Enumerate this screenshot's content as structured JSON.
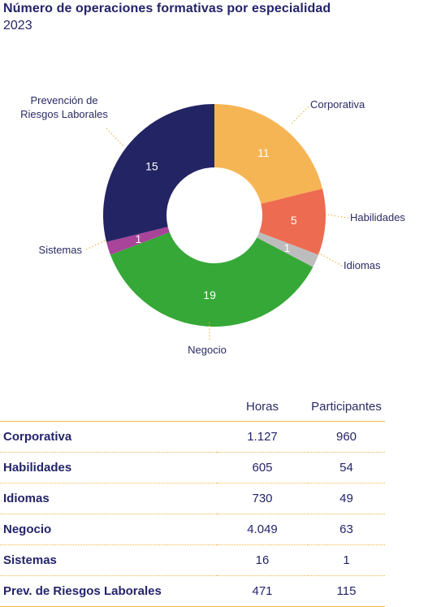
{
  "header": {
    "title": "Número de operaciones formativas por especialidad",
    "subtitle": "2023"
  },
  "chart_data": {
    "type": "pie",
    "variant": "donut",
    "categories": [
      "Corporativa",
      "Habilidades",
      "Idiomas",
      "Negocio",
      "Sistemas",
      "Prevención de Riesgos Laborales"
    ],
    "values": [
      11,
      5,
      1,
      19,
      1,
      15
    ],
    "colors": [
      "#f6b554",
      "#ed6b50",
      "#bdbdbd",
      "#36a837",
      "#a9449b",
      "#222463"
    ],
    "legend_labels": [
      [
        "Corporativa"
      ],
      [
        "Habilidades"
      ],
      [
        "Idiomas"
      ],
      [
        "Negocio"
      ],
      [
        "Sistemas"
      ],
      [
        "Prevención de",
        "Riesgos Laborales"
      ]
    ]
  },
  "table": {
    "headers": [
      "",
      "Horas",
      "Participantes"
    ],
    "rows": [
      {
        "label": "Corporativa",
        "horas": "1.127",
        "participantes": "960"
      },
      {
        "label": "Habilidades",
        "horas": "605",
        "participantes": "54"
      },
      {
        "label": "Idiomas",
        "horas": "730",
        "participantes": "49"
      },
      {
        "label": "Negocio",
        "horas": "4.049",
        "participantes": "63"
      },
      {
        "label": "Sistemas",
        "horas": "16",
        "participantes": "1"
      },
      {
        "label": "Prev. de Riesgos Laborales",
        "horas": "471",
        "participantes": "115"
      }
    ]
  }
}
